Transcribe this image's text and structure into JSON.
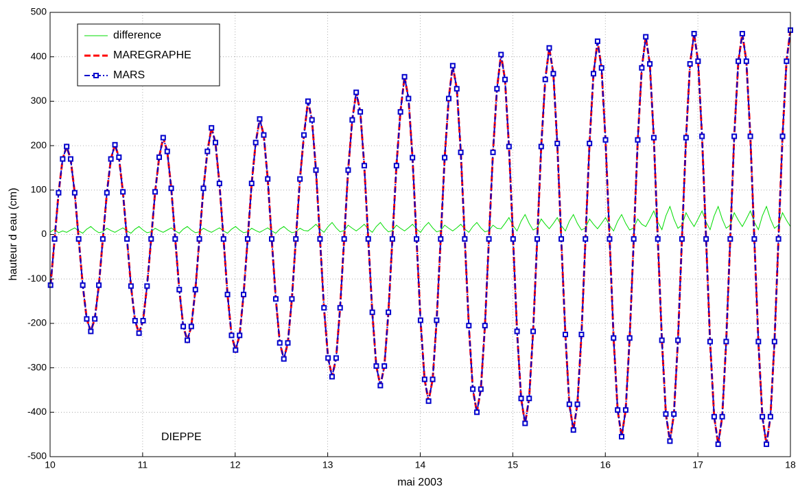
{
  "chart_data": {
    "type": "line",
    "xlabel": "mai 2003",
    "ylabel": "hauteur d eau (cm)",
    "annotation": "DIEPPE",
    "xlim": [
      10,
      18
    ],
    "xticks": [
      10,
      11,
      12,
      13,
      14,
      15,
      16,
      17,
      18
    ],
    "ylim": [
      -500,
      500
    ],
    "yticks": [
      -500,
      -400,
      -300,
      -200,
      -100,
      0,
      100,
      200,
      300,
      400,
      500
    ],
    "grid": true,
    "legend": "upper left",
    "x": [
      10.005,
      10.049,
      10.092,
      10.136,
      10.179,
      10.222,
      10.266,
      10.309,
      10.353,
      10.396,
      10.44,
      10.483,
      10.527,
      10.57,
      10.614,
      10.657,
      10.701,
      10.744,
      10.787,
      10.831,
      10.874,
      10.918,
      10.961,
      11.005,
      11.048,
      11.092,
      11.135,
      11.179,
      11.222,
      11.266,
      11.309,
      11.352,
      11.396,
      11.439,
      11.483,
      11.526,
      11.57,
      11.613,
      11.657,
      11.7,
      11.744,
      11.787,
      11.83,
      11.874,
      11.917,
      11.961,
      12.004,
      12.048,
      12.091,
      12.135,
      12.178,
      12.222,
      12.265,
      12.309,
      12.352,
      12.395,
      12.439,
      12.482,
      12.526,
      12.569,
      12.613,
      12.656,
      12.7,
      12.743,
      12.787,
      12.83,
      12.873,
      12.917,
      12.96,
      13.004,
      13.047,
      13.091,
      13.134,
      13.178,
      13.221,
      13.265,
      13.308,
      13.352,
      13.395,
      13.438,
      13.482,
      13.525,
      13.569,
      13.612,
      13.656,
      13.699,
      13.743,
      13.786,
      13.83,
      13.873,
      13.916,
      13.96,
      14.003,
      14.047,
      14.09,
      14.134,
      14.177,
      14.221,
      14.264,
      14.308,
      14.351,
      14.395,
      14.438,
      14.481,
      14.525,
      14.568,
      14.612,
      14.655,
      14.699,
      14.742,
      14.786,
      14.829,
      14.873,
      14.916,
      14.959,
      15.003,
      15.046,
      15.09,
      15.133,
      15.177,
      15.22,
      15.264,
      15.307,
      15.351,
      15.394,
      15.438,
      15.481,
      15.524,
      15.568,
      15.611,
      15.655,
      15.698,
      15.742,
      15.785,
      15.829,
      15.872,
      15.916,
      15.959,
      16.002,
      16.046,
      16.089,
      16.133,
      16.176,
      16.22,
      16.263,
      16.307,
      16.35,
      16.394,
      16.437,
      16.481,
      16.524,
      16.567,
      16.611,
      16.654,
      16.698,
      16.741,
      16.785,
      16.828,
      16.872,
      16.915,
      16.959,
      17.002,
      17.045,
      17.089,
      17.132,
      17.176,
      17.219,
      17.263,
      17.306,
      17.35,
      17.393,
      17.437,
      17.48,
      17.524,
      17.567,
      17.61,
      17.654,
      17.697,
      17.741,
      17.784,
      17.828,
      17.871,
      17.915,
      17.958,
      18
    ],
    "series": [
      {
        "name": "difference",
        "color": "#00dd00",
        "linestyle": "solid",
        "marker": "none",
        "values": [
          6,
          12,
          4,
          8,
          5,
          10,
          15,
          8,
          3,
          12,
          18,
          10,
          4,
          6,
          14,
          9,
          5,
          10,
          15,
          8,
          3,
          12,
          18,
          10,
          4,
          6,
          14,
          9,
          5,
          10,
          15,
          8,
          3,
          12,
          18,
          10,
          4,
          6,
          14,
          9,
          5,
          10,
          15,
          8,
          3,
          12,
          18,
          10,
          4,
          6,
          14,
          9,
          5,
          10,
          15,
          8,
          3,
          12,
          18,
          10,
          4,
          6,
          14,
          9,
          8,
          15,
          23,
          12,
          5,
          18,
          27,
          15,
          6,
          9,
          21,
          14,
          8,
          15,
          23,
          12,
          5,
          18,
          27,
          15,
          6,
          9,
          21,
          14,
          8,
          15,
          23,
          12,
          5,
          18,
          27,
          15,
          6,
          9,
          21,
          14,
          8,
          15,
          23,
          12,
          5,
          18,
          27,
          15,
          6,
          9,
          21,
          14,
          13,
          25,
          38,
          20,
          8,
          30,
          45,
          25,
          10,
          15,
          35,
          23,
          13,
          25,
          38,
          20,
          8,
          30,
          45,
          25,
          10,
          15,
          35,
          23,
          13,
          25,
          38,
          20,
          8,
          30,
          45,
          25,
          10,
          15,
          35,
          23,
          18,
          35,
          53,
          28,
          11,
          42,
          63,
          35,
          14,
          21,
          49,
          32,
          18,
          35,
          53,
          28,
          11,
          42,
          63,
          35,
          14,
          21,
          49,
          32,
          18,
          35,
          53,
          28,
          11,
          42,
          63,
          35,
          14,
          21,
          49,
          32,
          18
        ]
      },
      {
        "name": "MAREGRAPHE",
        "color": "#ff0000",
        "linestyle": "dashed",
        "marker": "none",
        "values": [
          -114,
          -10,
          94,
          170,
          198,
          170,
          94,
          -10,
          -114,
          -190,
          -218,
          -190,
          -114,
          -10,
          94,
          170,
          202,
          174,
          96,
          -10,
          -116,
          -194,
          -222,
          -194,
          -116,
          -10,
          96,
          174,
          218,
          187,
          104,
          -10,
          -124,
          -207,
          -238,
          -207,
          -124,
          -10,
          104,
          187,
          240,
          207,
          115,
          -10,
          -135,
          -227,
          -260,
          -227,
          -135,
          -10,
          115,
          207,
          260,
          224,
          125,
          -10,
          -145,
          -244,
          -280,
          -244,
          -145,
          -10,
          125,
          224,
          300,
          258,
          145,
          -10,
          -165,
          -278,
          -320,
          -278,
          -165,
          -10,
          145,
          258,
          320,
          276,
          155,
          -10,
          -175,
          -296,
          -340,
          -296,
          -175,
          -10,
          155,
          276,
          355,
          306,
          173,
          -10,
          -193,
          -326,
          -375,
          -326,
          -193,
          -10,
          173,
          306,
          380,
          328,
          185,
          -10,
          -205,
          -348,
          -400,
          -348,
          -205,
          -10,
          185,
          328,
          405,
          349,
          198,
          -10,
          -218,
          -369,
          -425,
          -369,
          -218,
          -10,
          198,
          349,
          420,
          362,
          205,
          -10,
          -225,
          -382,
          -440,
          -382,
          -225,
          -10,
          205,
          362,
          435,
          375,
          213,
          -10,
          -233,
          -395,
          -455,
          -395,
          -233,
          -10,
          213,
          375,
          445,
          384,
          218,
          -10,
          -238,
          -404,
          -465,
          -404,
          -238,
          -10,
          218,
          384,
          452,
          390,
          221,
          -10,
          -241,
          -410,
          -472,
          -410,
          -241,
          -10,
          221,
          390,
          452,
          390,
          221,
          -10,
          -241,
          -410,
          -472,
          -410,
          -241,
          -10,
          221,
          390,
          460
        ]
      },
      {
        "name": "MARS",
        "color": "#0000cc",
        "linestyle": "dashdot",
        "marker": "square",
        "values": [
          -114,
          -10,
          94,
          170,
          198,
          170,
          94,
          -10,
          -114,
          -190,
          -218,
          -190,
          -114,
          -10,
          94,
          170,
          202,
          174,
          96,
          -10,
          -116,
          -194,
          -222,
          -194,
          -116,
          -10,
          96,
          174,
          218,
          187,
          104,
          -10,
          -124,
          -207,
          -238,
          -207,
          -124,
          -10,
          104,
          187,
          240,
          207,
          115,
          -10,
          -135,
          -227,
          -260,
          -227,
          -135,
          -10,
          115,
          207,
          260,
          224,
          125,
          -10,
          -145,
          -244,
          -280,
          -244,
          -145,
          -10,
          125,
          224,
          300,
          258,
          145,
          -10,
          -165,
          -278,
          -320,
          -278,
          -165,
          -10,
          145,
          258,
          320,
          276,
          155,
          -10,
          -175,
          -296,
          -340,
          -296,
          -175,
          -10,
          155,
          276,
          355,
          306,
          173,
          -10,
          -193,
          -326,
          -375,
          -326,
          -193,
          -10,
          173,
          306,
          380,
          328,
          185,
          -10,
          -205,
          -348,
          -400,
          -348,
          -205,
          -10,
          185,
          328,
          405,
          349,
          198,
          -10,
          -218,
          -369,
          -425,
          -369,
          -218,
          -10,
          198,
          349,
          420,
          362,
          205,
          -10,
          -225,
          -382,
          -440,
          -382,
          -225,
          -10,
          205,
          362,
          435,
          375,
          213,
          -10,
          -233,
          -395,
          -455,
          -395,
          -233,
          -10,
          213,
          375,
          445,
          384,
          218,
          -10,
          -238,
          -404,
          -465,
          -404,
          -238,
          -10,
          218,
          384,
          452,
          390,
          221,
          -10,
          -241,
          -410,
          -472,
          -410,
          -241,
          -10,
          221,
          390,
          452,
          390,
          221,
          -10,
          -241,
          -410,
          -472,
          -410,
          -241,
          -10,
          221,
          390,
          460
        ]
      }
    ]
  }
}
